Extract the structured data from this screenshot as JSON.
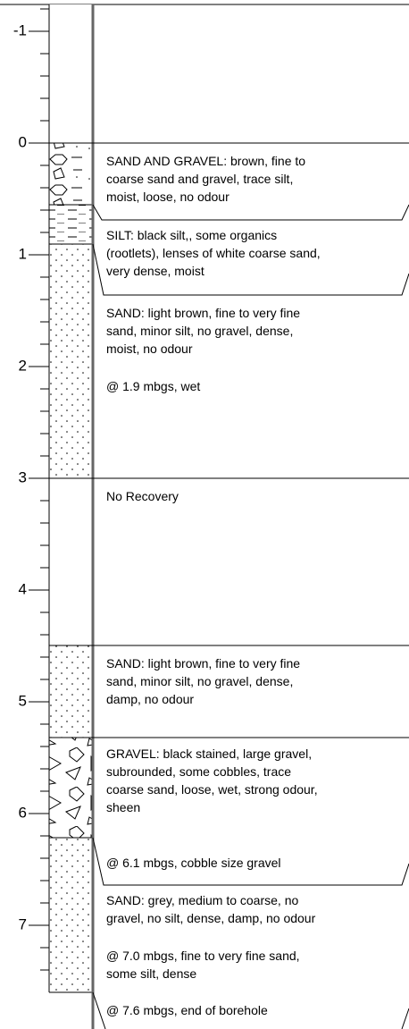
{
  "depth_axis": {
    "ticks": [
      -1,
      0,
      1,
      2,
      3,
      4,
      5,
      6,
      7
    ]
  },
  "descriptions": [
    {
      "lines": [
        "SAND AND GRAVEL: brown, fine to",
        "coarse sand and gravel, trace silt,",
        "moist, loose, no odour"
      ]
    },
    {
      "lines": [
        "SILT: black silt,, some organics",
        "(rootlets), lenses of white coarse sand,",
        "very dense, moist"
      ]
    },
    {
      "lines": [
        "SAND: light brown, fine to very fine",
        "sand, minor silt, no gravel, dense,",
        "moist, no odour"
      ]
    },
    {
      "lines": [
        "@ 1.9 mbgs, wet"
      ]
    },
    {
      "lines": [
        "No Recovery"
      ]
    },
    {
      "lines": [
        "SAND: light brown, fine to very fine",
        "sand, minor silt, no gravel, dense,",
        "damp, no odour"
      ]
    },
    {
      "lines": [
        "GRAVEL: black stained, large gravel,",
        "subrounded, some cobbles, trace",
        "coarse sand, loose, wet, strong odour,",
        "sheen"
      ]
    },
    {
      "lines": [
        "@ 6.1 mbgs, cobble size gravel"
      ]
    },
    {
      "lines": [
        "SAND: grey, medium to coarse, no",
        "gravel, no silt, dense, damp, no odour"
      ]
    },
    {
      "lines": [
        "@ 7.0 mbgs, fine to very fine sand,",
        "some silt, dense"
      ]
    },
    {
      "lines": [
        "@ 7.6 mbgs, end of borehole"
      ]
    }
  ]
}
